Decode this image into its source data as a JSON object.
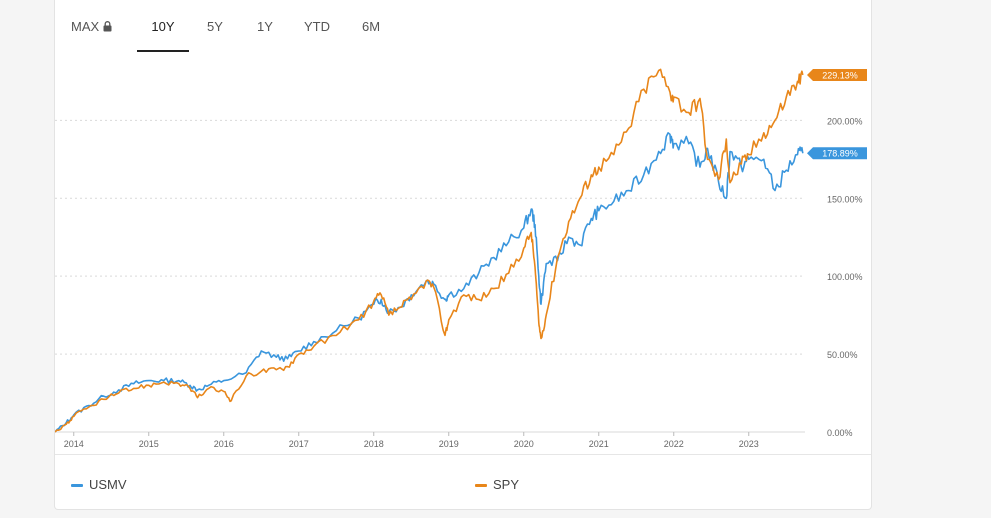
{
  "tabs": [
    {
      "label": "MAX",
      "locked": true
    },
    {
      "label": "10Y",
      "active": true
    },
    {
      "label": "5Y"
    },
    {
      "label": "1Y"
    },
    {
      "label": "YTD"
    },
    {
      "label": "6M"
    }
  ],
  "colors": {
    "usmv": "#3a96dd",
    "spy": "#e8861a",
    "grid": "#d9d9d9",
    "axis": "#666666"
  },
  "chart_data": {
    "type": "line",
    "xlim": [
      2013.75,
      2023.75
    ],
    "ylim": [
      0,
      240
    ],
    "x_ticks": [
      "2014",
      "2015",
      "2016",
      "2017",
      "2018",
      "2019",
      "2020",
      "2021",
      "2022",
      "2023"
    ],
    "y_ticks": [
      "0.00%",
      "50.00%",
      "100.00%",
      "150.00%",
      "200.00%"
    ],
    "y_tick_values": [
      0,
      50,
      100,
      150,
      200
    ],
    "grid": "horizontal-dashed",
    "legend_position": "bottom",
    "series": [
      {
        "name": "USMV",
        "last_label": "178.89%",
        "x": [
          2013.75,
          2013.9,
          2014.0,
          2014.2,
          2014.4,
          2014.6,
          2014.8,
          2015.0,
          2015.2,
          2015.4,
          2015.55,
          2015.65,
          2015.8,
          2016.0,
          2016.3,
          2016.5,
          2016.7,
          2016.85,
          2017.0,
          2017.2,
          2017.5,
          2017.8,
          2018.0,
          2018.1,
          2018.2,
          2018.35,
          2018.5,
          2018.7,
          2018.8,
          2018.95,
          2019.0,
          2019.2,
          2019.4,
          2019.6,
          2019.8,
          2020.0,
          2020.1,
          2020.15,
          2020.2,
          2020.23,
          2020.3,
          2020.45,
          2020.6,
          2020.75,
          2020.9,
          2021.0,
          2021.2,
          2021.4,
          2021.6,
          2021.8,
          2021.95,
          2022.0,
          2022.2,
          2022.35,
          2022.45,
          2022.6,
          2022.7,
          2022.75,
          2022.9,
          2023.0,
          2023.2,
          2023.35,
          2023.5,
          2023.65,
          2023.72
        ],
        "y": [
          0,
          6,
          11,
          17,
          23,
          27,
          31,
          33,
          33,
          33,
          30,
          27,
          30,
          33,
          38,
          52,
          48,
          47,
          52,
          58,
          65,
          73,
          82,
          85,
          77,
          80,
          88,
          97,
          95,
          85,
          88,
          92,
          102,
          112,
          122,
          131,
          143,
          133,
          100,
          82,
          108,
          110,
          125,
          120,
          137,
          142,
          148,
          155,
          165,
          180,
          191,
          185,
          185,
          170,
          182,
          160,
          150,
          180,
          170,
          175,
          175,
          155,
          168,
          178,
          178.89
        ]
      },
      {
        "name": "SPY",
        "last_label": "229.13%",
        "x": [
          2013.75,
          2013.9,
          2014.0,
          2014.2,
          2014.4,
          2014.6,
          2014.8,
          2015.0,
          2015.2,
          2015.4,
          2015.55,
          2015.65,
          2015.8,
          2016.0,
          2016.1,
          2016.3,
          2016.5,
          2016.7,
          2016.85,
          2017.0,
          2017.2,
          2017.5,
          2017.8,
          2018.0,
          2018.1,
          2018.2,
          2018.35,
          2018.5,
          2018.7,
          2018.8,
          2018.95,
          2019.0,
          2019.2,
          2019.4,
          2019.6,
          2019.8,
          2020.0,
          2020.1,
          2020.15,
          2020.2,
          2020.23,
          2020.3,
          2020.45,
          2020.6,
          2020.75,
          2020.9,
          2021.0,
          2021.2,
          2021.4,
          2021.6,
          2021.8,
          2021.95,
          2022.0,
          2022.2,
          2022.35,
          2022.45,
          2022.6,
          2022.7,
          2022.75,
          2022.9,
          2023.0,
          2023.2,
          2023.35,
          2023.5,
          2023.65,
          2023.72
        ],
        "y": [
          0,
          5,
          10,
          16,
          21,
          25,
          28,
          30,
          32,
          31,
          28,
          22,
          28,
          26,
          20,
          36,
          39,
          40,
          42,
          50,
          55,
          62,
          72,
          84,
          88,
          75,
          80,
          85,
          97,
          93,
          62,
          72,
          88,
          85,
          92,
          102,
          118,
          128,
          106,
          70,
          60,
          75,
          112,
          135,
          150,
          165,
          170,
          178,
          195,
          220,
          232,
          218,
          215,
          205,
          214,
          175,
          162,
          188,
          160,
          172,
          178,
          192,
          200,
          215,
          225,
          229.13
        ]
      }
    ]
  }
}
